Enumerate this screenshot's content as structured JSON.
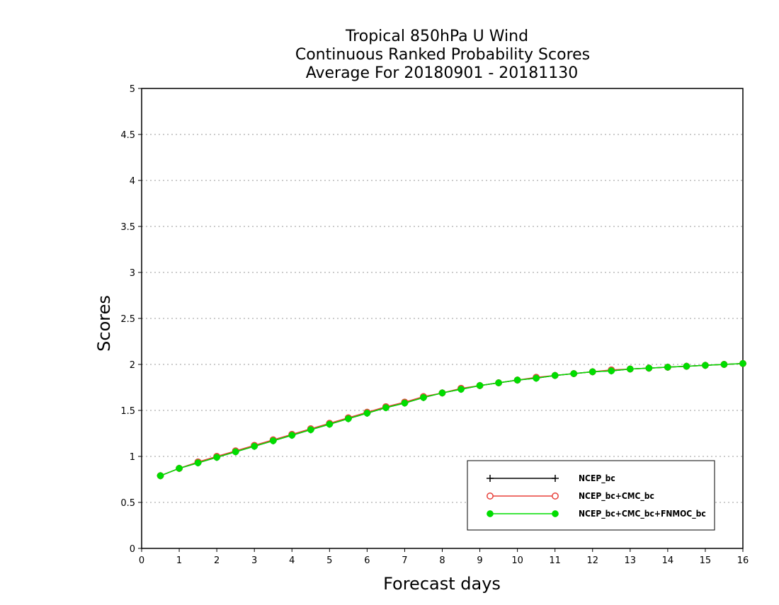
{
  "chart_data": {
    "type": "line",
    "title_lines": [
      "Tropical 850hPa U Wind",
      "Continuous Ranked Probability Scores",
      "Average For 20180901 - 20181130"
    ],
    "xlabel": "Forecast days",
    "ylabel": "Scores",
    "xlim": [
      0,
      16
    ],
    "ylim": [
      0,
      5
    ],
    "x_ticks": [
      0,
      1,
      2,
      3,
      4,
      5,
      6,
      7,
      8,
      9,
      10,
      11,
      12,
      13,
      14,
      15,
      16
    ],
    "y_ticks": [
      0,
      0.5,
      1,
      1.5,
      2,
      2.5,
      3,
      3.5,
      4,
      4.5,
      5
    ],
    "grid": "horizontal dotted",
    "legend_position": "bottom-right",
    "x": [
      0.5,
      1,
      1.5,
      2,
      2.5,
      3,
      3.5,
      4,
      4.5,
      5,
      5.5,
      6,
      6.5,
      7,
      7.5,
      8,
      8.5,
      9,
      9.5,
      10,
      10.5,
      11,
      11.5,
      12,
      12.5,
      13,
      13.5,
      14,
      14.5,
      15,
      15.5,
      16
    ],
    "series": [
      {
        "name": "NCEP_bc",
        "color": "#000000",
        "marker": "plus",
        "values": [
          0.79,
          0.87,
          0.93,
          0.99,
          1.05,
          1.11,
          1.17,
          1.23,
          1.29,
          1.35,
          1.41,
          1.47,
          1.53,
          1.58,
          1.64,
          1.69,
          1.73,
          1.77,
          1.8,
          1.83,
          1.85,
          1.88,
          1.9,
          1.92,
          1.93,
          1.95,
          1.96,
          1.97,
          1.98,
          1.99,
          2.0,
          2.01
        ]
      },
      {
        "name": "NCEP_bc+CMC_bc",
        "color": "#e8403a",
        "marker": "open-circle",
        "values": [
          0.79,
          0.87,
          0.94,
          1.0,
          1.06,
          1.12,
          1.18,
          1.24,
          1.3,
          1.36,
          1.42,
          1.48,
          1.54,
          1.59,
          1.65,
          1.69,
          1.74,
          1.77,
          1.8,
          1.83,
          1.86,
          1.88,
          1.9,
          1.92,
          1.94,
          1.95,
          1.96,
          1.97,
          1.98,
          1.99,
          2.0,
          2.01
        ]
      },
      {
        "name": "NCEP_bc+CMC_bc+FNMOC_bc",
        "color": "#00dd00",
        "marker": "filled-circle",
        "values": [
          0.79,
          0.87,
          0.93,
          0.99,
          1.05,
          1.11,
          1.17,
          1.23,
          1.29,
          1.35,
          1.41,
          1.47,
          1.53,
          1.58,
          1.64,
          1.69,
          1.73,
          1.77,
          1.8,
          1.83,
          1.85,
          1.88,
          1.9,
          1.92,
          1.93,
          1.95,
          1.96,
          1.97,
          1.98,
          1.99,
          2.0,
          2.01
        ]
      }
    ]
  }
}
